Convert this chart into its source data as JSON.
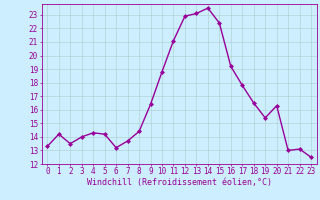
{
  "x": [
    0,
    1,
    2,
    3,
    4,
    5,
    6,
    7,
    8,
    9,
    10,
    11,
    12,
    13,
    14,
    15,
    16,
    17,
    18,
    19,
    20,
    21,
    22,
    23
  ],
  "y": [
    13.3,
    14.2,
    13.5,
    14.0,
    14.3,
    14.2,
    13.2,
    13.7,
    14.4,
    16.4,
    18.8,
    21.1,
    22.9,
    23.1,
    23.5,
    22.4,
    19.2,
    17.8,
    16.5,
    15.4,
    16.3,
    13.0,
    13.1,
    12.5
  ],
  "line_color": "#990099",
  "marker": "D",
  "marker_size": 2,
  "line_width": 1.0,
  "bg_color": "#cceeff",
  "grid_color": "#aacccc",
  "tick_color": "#990099",
  "xlabel": "Windchill (Refroidissement éolien,°C)",
  "xlabel_color": "#990099",
  "xlabel_fontsize": 6.0,
  "xlim": [
    -0.5,
    23.5
  ],
  "ylim": [
    12,
    23.8
  ],
  "yticks": [
    12,
    13,
    14,
    15,
    16,
    17,
    18,
    19,
    20,
    21,
    22,
    23
  ],
  "xticks": [
    0,
    1,
    2,
    3,
    4,
    5,
    6,
    7,
    8,
    9,
    10,
    11,
    12,
    13,
    14,
    15,
    16,
    17,
    18,
    19,
    20,
    21,
    22,
    23
  ],
  "tick_fontsize": 5.5,
  "spine_color": "#990099"
}
